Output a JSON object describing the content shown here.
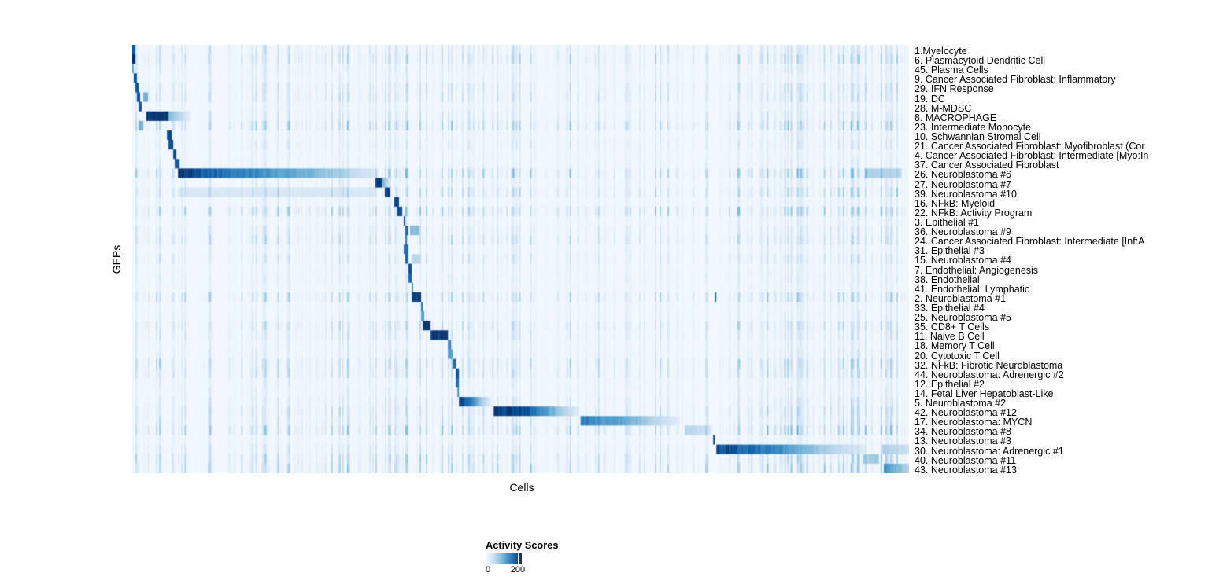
{
  "chart_data": {
    "type": "heatmap",
    "title": "",
    "xlabel": "Cells",
    "ylabel": "GEPs",
    "x_axis": {
      "tick_labels": [],
      "note": "columns are individual cells, unlabeled"
    },
    "legend": {
      "title": "Activity Scores",
      "ticks": [
        "0",
        "200"
      ],
      "gradient": [
        "#f7fbff",
        "#c6dbef",
        "#6baed6",
        "#2171b5",
        "#08306b"
      ],
      "position": "bottom-left"
    },
    "colormap": [
      {
        "t": 0.0,
        "c": "#f7fbff"
      },
      {
        "t": 0.13,
        "c": "#deebf7"
      },
      {
        "t": 0.26,
        "c": "#c6dbef"
      },
      {
        "t": 0.39,
        "c": "#9ecae1"
      },
      {
        "t": 0.52,
        "c": "#6baed6"
      },
      {
        "t": 0.65,
        "c": "#4292c6"
      },
      {
        "t": 0.78,
        "c": "#2171b5"
      },
      {
        "t": 0.9,
        "c": "#08519c"
      },
      {
        "t": 1.0,
        "c": "#08306b"
      }
    ],
    "grid": false,
    "seed": 1337,
    "n_cols": 492,
    "noise_zones": [
      [
        0,
        0.07,
        1.7
      ],
      [
        0.07,
        0.32,
        1.1
      ],
      [
        0.32,
        0.43,
        1.35
      ],
      [
        0.43,
        0.59,
        0.75
      ],
      [
        0.59,
        0.76,
        0.7
      ],
      [
        0.76,
        0.88,
        0.95
      ],
      [
        0.88,
        1,
        1.5
      ]
    ],
    "rows": [
      {
        "label": "1.Myelocyte",
        "stripe": 0.3,
        "blocks": [
          [
            0,
            0.004,
            0.9,
            0.9
          ]
        ]
      },
      {
        "label": "6. Plasmacytoid Dendritic Cell",
        "stripe": 0.4,
        "blocks": [
          [
            0,
            0.005,
            1,
            1
          ]
        ]
      },
      {
        "label": "45. Plasma Cells",
        "stripe": 0.18,
        "blocks": [
          [
            0,
            0.003,
            0.5,
            0.5
          ]
        ]
      },
      {
        "label": "9. Cancer Associated Fibroblast: Inflammatory",
        "stripe": 0.15,
        "blocks": [
          [
            0.002,
            0.006,
            0.9,
            0.9
          ]
        ]
      },
      {
        "label": "29. IFN Response",
        "stripe": 0.3,
        "blocks": [
          [
            0.004,
            0.008,
            0.85,
            0.85
          ]
        ]
      },
      {
        "label": "19. DC",
        "stripe": 0.3,
        "blocks": [
          [
            0.006,
            0.01,
            0.9,
            0.9
          ],
          [
            0.015,
            0.021,
            0.5,
            0.5
          ]
        ]
      },
      {
        "label": "28. M-MDSC",
        "stripe": 0.15,
        "blocks": [
          [
            0.008,
            0.013,
            0.9,
            0.9
          ]
        ]
      },
      {
        "label": "8. MACROPHAGE",
        "stripe": 0.25,
        "blocks": [
          [
            0.018,
            0.047,
            1,
            1
          ],
          [
            0.047,
            0.075,
            0.5,
            0.06
          ]
        ]
      },
      {
        "label": "23. Intermediate Monocyte",
        "stripe": 0.45,
        "blocks": [
          [
            0.009,
            0.014,
            0.5,
            0.5
          ]
        ]
      },
      {
        "label": "10. Schwannian Stromal Cell",
        "stripe": 0.15,
        "blocks": [
          [
            0.044,
            0.05,
            0.95,
            0.95
          ]
        ]
      },
      {
        "label": "21. Cancer Associated Fibroblast: Myofibroblast (Cor",
        "stripe": 0.2,
        "blocks": [
          [
            0.047,
            0.053,
            0.9,
            0.9
          ]
        ]
      },
      {
        "label": "4. Cancer Associated Fibroblast: Intermediate [Myo:In",
        "stripe": 0.12,
        "blocks": [
          [
            0.052,
            0.057,
            0.95,
            0.95
          ]
        ]
      },
      {
        "label": "37. Cancer Associated Fibroblast",
        "stripe": 0.15,
        "blocks": [
          [
            0.055,
            0.06,
            0.9,
            0.9
          ]
        ]
      },
      {
        "label": "26. Neuroblastoma #6",
        "stripe": 0.5,
        "blocks": [
          [
            0.059,
            0.08,
            1,
            1
          ],
          [
            0.08,
            0.25,
            0.9,
            0.4
          ],
          [
            0.25,
            0.318,
            0.4,
            0.08
          ],
          [
            0.944,
            0.99,
            0.3,
            0.3
          ]
        ]
      },
      {
        "label": "27. Neuroblastoma #7",
        "stripe": 0.2,
        "blocks": [
          [
            0.312,
            0.321,
            0.95,
            0.95
          ],
          [
            0.321,
            0.333,
            0.55,
            0.1
          ]
        ]
      },
      {
        "label": "39. Neuroblastoma #10",
        "stripe": 0.4,
        "blocks": [
          [
            0.059,
            0.315,
            0.13,
            0.13
          ],
          [
            0.325,
            0.332,
            0.95,
            0.95
          ]
        ]
      },
      {
        "label": "16. NFkB: Myeloid",
        "stripe": 0.15,
        "blocks": [
          [
            0.338,
            0.343,
            0.95,
            0.95
          ]
        ]
      },
      {
        "label": "22. NFkB: Activity Program",
        "stripe": 0.5,
        "blocks": [
          [
            0.342,
            0.347,
            0.9,
            0.9
          ]
        ]
      },
      {
        "label": "3. Epithelial #1",
        "stripe": 0.15,
        "blocks": [
          [
            0.349,
            0.352,
            0.9,
            0.9
          ]
        ]
      },
      {
        "label": "36. Neuroblastoma #9",
        "stripe": 0.25,
        "blocks": [
          [
            0.352,
            0.355,
            0.85,
            0.85
          ],
          [
            0.358,
            0.369,
            0.42,
            0.42
          ]
        ]
      },
      {
        "label": "24. Cancer Associated Fibroblast: Intermediate [Inf:A",
        "stripe": 0.35,
        "blocks": [
          [
            0.351,
            0.354,
            0.75,
            0.75
          ]
        ]
      },
      {
        "label": "31. Epithelial #3",
        "stripe": 0.15,
        "blocks": [
          [
            0.35,
            0.355,
            0.85,
            0.85
          ]
        ]
      },
      {
        "label": "15. Neuroblastoma #4",
        "stripe": 0.25,
        "blocks": [
          [
            0.352,
            0.356,
            0.8,
            0.8
          ],
          [
            0.36,
            0.371,
            0.28,
            0.28
          ]
        ]
      },
      {
        "label": "7. Endothelial: Angiogenesis",
        "stripe": 0.12,
        "blocks": [
          [
            0.355,
            0.359,
            0.9,
            0.9
          ]
        ]
      },
      {
        "label": "38. Endothelial",
        "stripe": 0.15,
        "blocks": [
          [
            0.355,
            0.359,
            0.85,
            0.85
          ]
        ]
      },
      {
        "label": "41. Endothelial: Lymphatic",
        "stripe": 0.12,
        "blocks": [
          [
            0.359,
            0.362,
            0.6,
            0.6
          ]
        ]
      },
      {
        "label": "2. Neuroblastoma #1",
        "stripe": 0.4,
        "blocks": [
          [
            0.36,
            0.371,
            1,
            1
          ],
          [
            0.75,
            0.753,
            0.75,
            0.75
          ]
        ]
      },
      {
        "label": "33. Epithelial #4",
        "stripe": 0.12,
        "blocks": [
          [
            0.371,
            0.374,
            0.8,
            0.8
          ]
        ]
      },
      {
        "label": "25. Neuroblastoma #5",
        "stripe": 0.15,
        "blocks": [
          [
            0.371,
            0.375,
            0.6,
            0.6
          ]
        ]
      },
      {
        "label": "35. CD8+ T Cells",
        "stripe": 0.35,
        "blocks": [
          [
            0.374,
            0.384,
            1,
            1
          ]
        ]
      },
      {
        "label": "11. Naive B Cell",
        "stripe": 0.25,
        "blocks": [
          [
            0.384,
            0.406,
            1,
            1
          ]
        ]
      },
      {
        "label": "18. Memory T Cell",
        "stripe": 0.15,
        "blocks": [
          [
            0.406,
            0.411,
            0.7,
            0.7
          ]
        ]
      },
      {
        "label": "20. Cytotoxic T Cell",
        "stripe": 0.2,
        "blocks": [
          [
            0.407,
            0.412,
            0.6,
            0.6
          ]
        ]
      },
      {
        "label": "32. NFkB: Fibrotic Neuroblastoma",
        "stripe": 0.4,
        "blocks": [
          [
            0.413,
            0.416,
            0.8,
            0.8
          ]
        ]
      },
      {
        "label": "44. Neuroblastoma: Adrenergic #2",
        "stripe": 0.35,
        "blocks": [
          [
            0.416,
            0.421,
            0.9,
            0.9
          ]
        ]
      },
      {
        "label": "12. Epithelial #2",
        "stripe": 0.15,
        "blocks": [
          [
            0.417,
            0.42,
            0.8,
            0.8
          ]
        ]
      },
      {
        "label": "14. Fetal Liver Hepatoblast-Like",
        "stripe": 0.15,
        "blocks": [
          [
            0.418,
            0.421,
            0.7,
            0.7
          ]
        ]
      },
      {
        "label": "5. Neuroblastoma #2",
        "stripe": 0.25,
        "blocks": [
          [
            0.42,
            0.437,
            0.95,
            0.75
          ],
          [
            0.437,
            0.462,
            0.7,
            0.06
          ]
        ]
      },
      {
        "label": "42. Neuroblastoma #12",
        "stripe": 0.35,
        "blocks": [
          [
            0.465,
            0.51,
            1,
            0.9
          ],
          [
            0.51,
            0.575,
            0.85,
            0.08
          ]
        ]
      },
      {
        "label": "17. Neuroblastoma: MYCN",
        "stripe": 0.3,
        "blocks": [
          [
            0.577,
            0.64,
            0.72,
            0.5
          ],
          [
            0.64,
            0.706,
            0.5,
            0.06
          ]
        ]
      },
      {
        "label": "34. Neuroblastoma #8",
        "stripe": 0.5,
        "blocks": [
          [
            0.711,
            0.746,
            0.3,
            0.18
          ]
        ]
      },
      {
        "label": "13. Neuroblastoma #3",
        "stripe": 0.15,
        "blocks": [
          [
            0.748,
            0.751,
            1,
            1
          ]
        ]
      },
      {
        "label": "30. Neuroblastoma: Adrenergic #1",
        "stripe": 0.25,
        "blocks": [
          [
            0.752,
            0.838,
            0.95,
            0.65
          ],
          [
            0.838,
            0.944,
            0.6,
            0.08
          ],
          [
            0.965,
            1,
            0.32,
            0.2
          ]
        ]
      },
      {
        "label": "40. Neuroblastoma #11",
        "stripe": 0.4,
        "blocks": [
          [
            0.941,
            0.961,
            0.35,
            0.35
          ]
        ]
      },
      {
        "label": "43. Neuroblastoma #13",
        "stripe": 0.45,
        "blocks": [
          [
            0.967,
            1,
            0.65,
            0.3
          ]
        ]
      }
    ]
  }
}
